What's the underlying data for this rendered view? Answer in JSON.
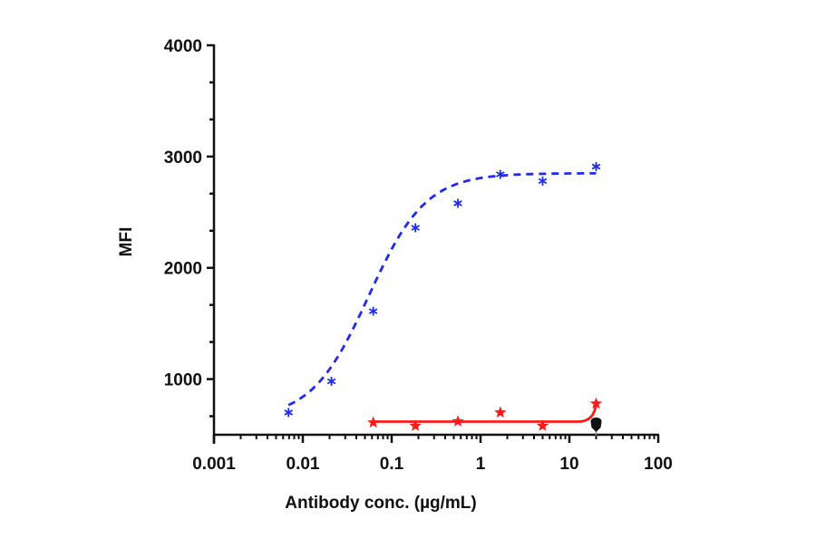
{
  "chart_data": {
    "type": "scatter",
    "title": "",
    "xlabel": "Antibody conc. (µg/mL)",
    "ylabel": "MFI",
    "xscale": "log",
    "xlim": [
      0.001,
      100
    ],
    "ylim": [
      500,
      4000
    ],
    "x_ticks": [
      0.001,
      0.01,
      0.1,
      1,
      10,
      100
    ],
    "x_tick_labels": [
      "0.001",
      "0.01",
      "0.1",
      "1",
      "10",
      "100"
    ],
    "y_ticks": [
      1000,
      2000,
      3000,
      4000
    ],
    "y_tick_labels": [
      "1000",
      "2000",
      "3000",
      "4000"
    ],
    "y_minor_per_major": 2,
    "grid": false,
    "legend": null,
    "series": [
      {
        "name": "series-blue",
        "color": "#1f2bef",
        "marker": "asterisk",
        "fit_line": "dashed",
        "x": [
          0.0069,
          0.021,
          0.062,
          0.185,
          0.556,
          1.67,
          5,
          20
        ],
        "values": [
          700,
          980,
          1610,
          2360,
          2580,
          2840,
          2780,
          2910
        ],
        "fit": {
          "bottom": 640,
          "top": 2850,
          "ec50": 0.055,
          "hill": 1.35
        }
      },
      {
        "name": "series-red",
        "color": "#ff1a1a",
        "marker": "star",
        "fit_line": "solid",
        "x": [
          0.062,
          0.185,
          0.556,
          1.67,
          5,
          20
        ],
        "values": [
          610,
          580,
          620,
          700,
          580,
          780
        ]
      },
      {
        "name": "series-black",
        "color": "#111111",
        "marker": "shield",
        "fit_line": "none",
        "x": [
          20
        ],
        "values": [
          590
        ]
      }
    ]
  }
}
